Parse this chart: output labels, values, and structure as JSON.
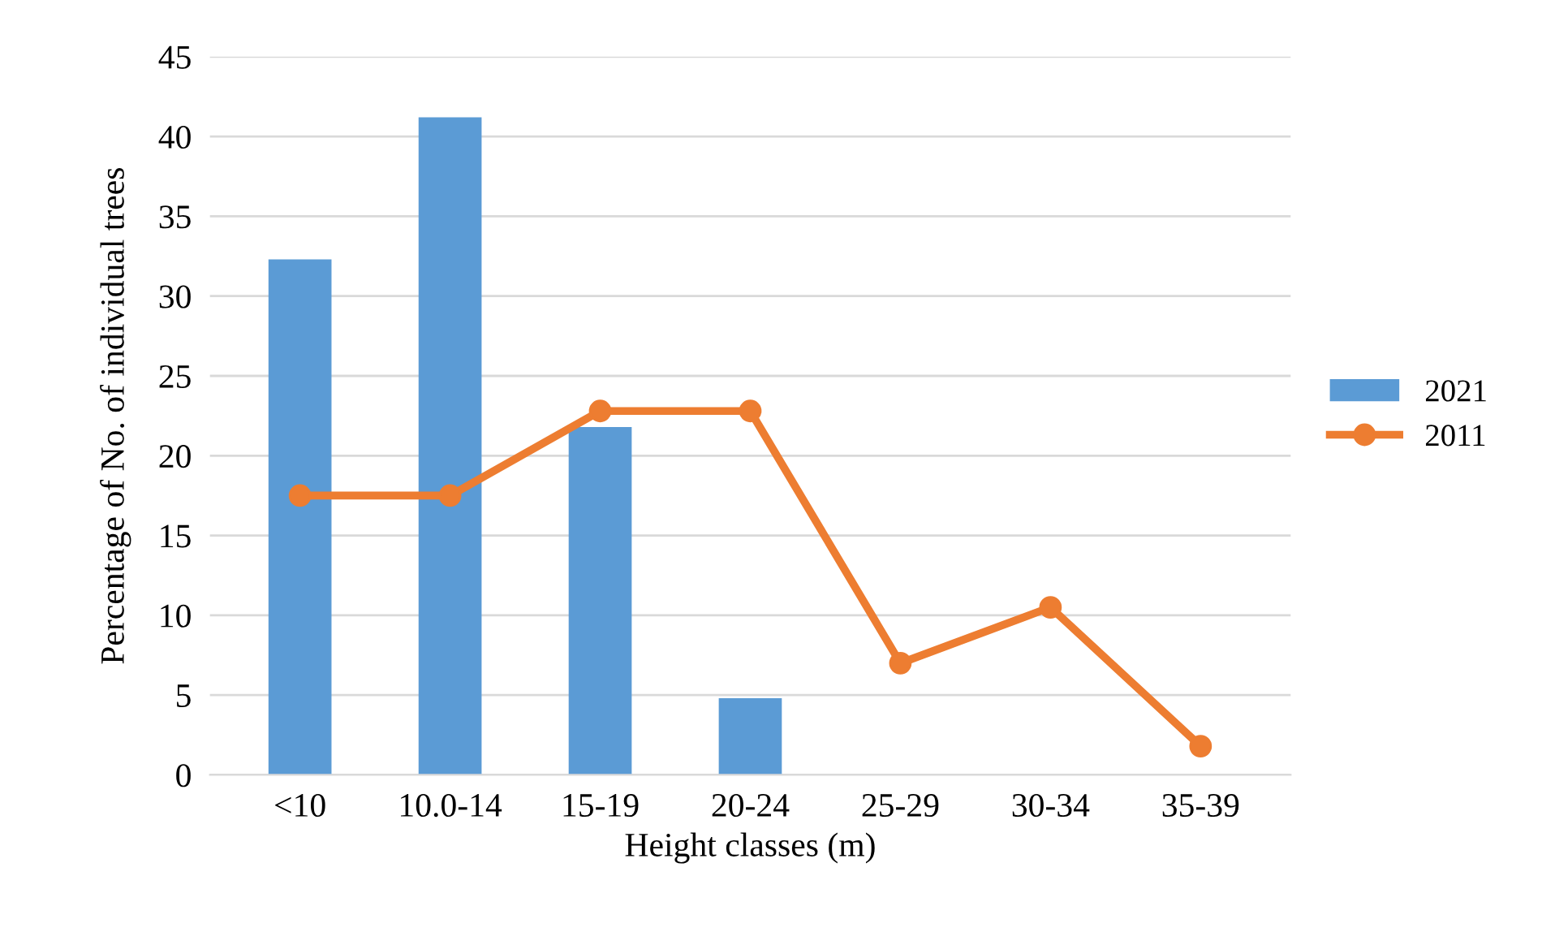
{
  "chart_data": {
    "type": "bar",
    "xlabel": "Height classes (m)",
    "ylabel": "Percentage of No. of individual trees",
    "categories": [
      "<10",
      "10.0-14",
      "15-19",
      "20-24",
      "25-29",
      "30-34",
      "35-39"
    ],
    "series": [
      {
        "name": "2021",
        "color": "#5b9bd5",
        "values": [
          32.3,
          41.2,
          21.8,
          4.8,
          0,
          0,
          0
        ]
      },
      {
        "name": "2011",
        "type": "line",
        "color": "#ed7d31",
        "marker": "circle",
        "values": [
          17.5,
          17.5,
          22.8,
          22.8,
          7.0,
          10.5,
          1.8
        ]
      }
    ],
    "ylim": [
      0,
      45
    ],
    "yticks": [
      0,
      5,
      10,
      15,
      20,
      25,
      30,
      35,
      40,
      45
    ],
    "grid": "y",
    "legend": "right"
  }
}
